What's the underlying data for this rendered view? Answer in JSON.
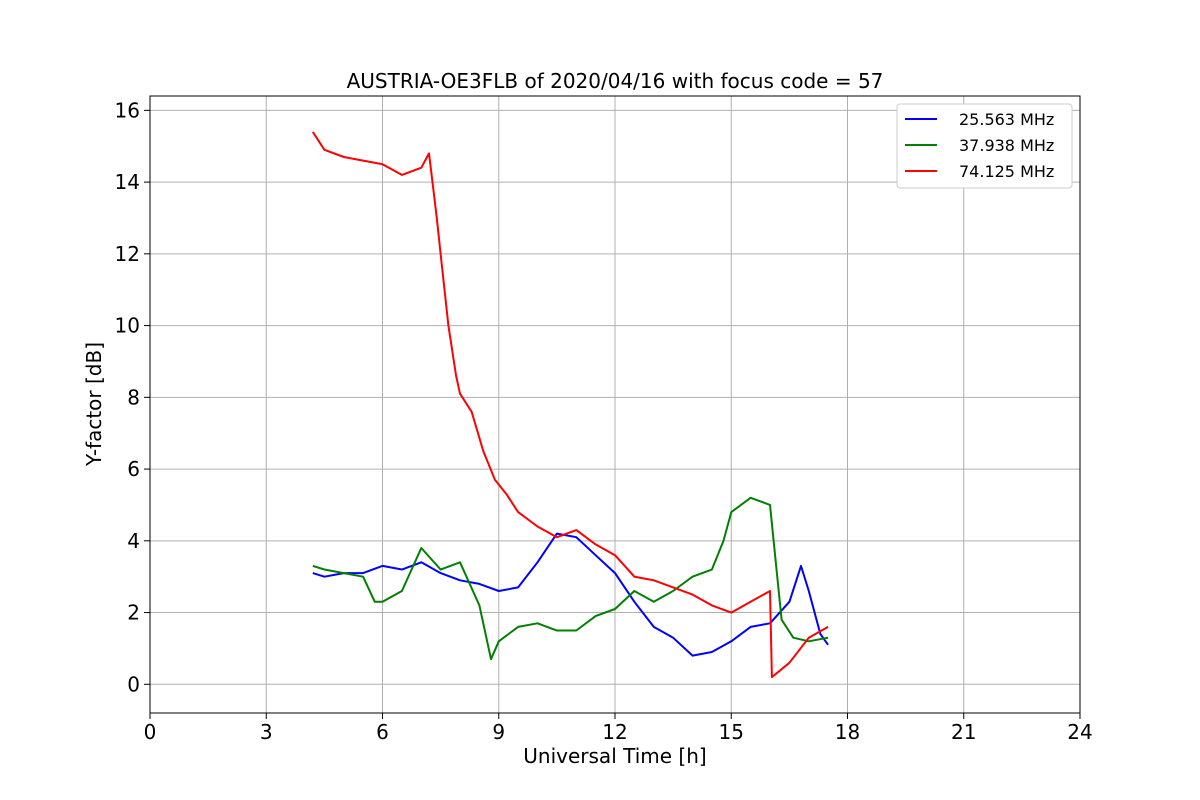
{
  "chart_data": {
    "type": "line",
    "title": "AUSTRIA-OE3FLB of 2020/04/16 with focus code = 57",
    "xlabel": "Universal Time [h]",
    "ylabel": "Y-factor [dB]",
    "xlim": [
      0,
      24
    ],
    "ylim": [
      -0.8,
      16.4
    ],
    "xticks": [
      0,
      3,
      6,
      9,
      12,
      15,
      18,
      21,
      24
    ],
    "xtick_labels": [
      "0",
      "3",
      "6",
      "9",
      "12",
      "15",
      "18",
      "21",
      "24"
    ],
    "yticks": [
      0,
      2,
      4,
      6,
      8,
      10,
      12,
      14,
      16
    ],
    "ytick_labels": [
      "0",
      "2",
      "4",
      "6",
      "8",
      "10",
      "12",
      "14",
      "16"
    ],
    "grid": true,
    "legend_position": "top-right",
    "series": [
      {
        "name": "25.563 MHz",
        "color": "#0000ff",
        "x": [
          4.2,
          4.5,
          5.0,
          5.5,
          6.0,
          6.5,
          7.0,
          7.5,
          8.0,
          8.5,
          9.0,
          9.5,
          10.0,
          10.5,
          11.0,
          11.5,
          12.0,
          12.5,
          13.0,
          13.5,
          14.0,
          14.5,
          15.0,
          15.5,
          16.0,
          16.5,
          16.8,
          17.0,
          17.3,
          17.5
        ],
        "y": [
          3.1,
          3.0,
          3.1,
          3.1,
          3.3,
          3.2,
          3.4,
          3.1,
          2.9,
          2.8,
          2.6,
          2.7,
          3.4,
          4.2,
          4.1,
          3.6,
          3.1,
          2.3,
          1.6,
          1.3,
          0.8,
          0.9,
          1.2,
          1.6,
          1.7,
          2.3,
          3.3,
          2.6,
          1.4,
          1.1
        ]
      },
      {
        "name": "37.938 MHz",
        "color": "#008000",
        "x": [
          4.2,
          4.5,
          5.0,
          5.5,
          5.8,
          6.0,
          6.5,
          7.0,
          7.5,
          8.0,
          8.5,
          8.8,
          9.0,
          9.5,
          10.0,
          10.5,
          11.0,
          11.5,
          12.0,
          12.5,
          13.0,
          13.5,
          14.0,
          14.5,
          14.8,
          15.0,
          15.5,
          16.0,
          16.3,
          16.6,
          17.0,
          17.5
        ],
        "y": [
          3.3,
          3.2,
          3.1,
          3.0,
          2.3,
          2.3,
          2.6,
          3.8,
          3.2,
          3.4,
          2.2,
          0.7,
          1.2,
          1.6,
          1.7,
          1.5,
          1.5,
          1.9,
          2.1,
          2.6,
          2.3,
          2.6,
          3.0,
          3.2,
          4.0,
          4.8,
          5.2,
          5.0,
          1.8,
          1.3,
          1.2,
          1.3
        ]
      },
      {
        "name": "74.125 MHz",
        "color": "#ff0000",
        "x": [
          4.2,
          4.5,
          5.0,
          5.5,
          6.0,
          6.5,
          7.0,
          7.2,
          7.4,
          7.5,
          7.7,
          7.9,
          8.0,
          8.3,
          8.6,
          8.9,
          9.2,
          9.5,
          10.0,
          10.5,
          11.0,
          11.5,
          12.0,
          12.5,
          13.0,
          13.5,
          14.0,
          14.5,
          15.0,
          15.5,
          16.0,
          16.05,
          16.5,
          17.0,
          17.5
        ],
        "y": [
          15.4,
          14.9,
          14.7,
          14.6,
          14.5,
          14.2,
          14.4,
          14.8,
          13.0,
          12.0,
          10.0,
          8.6,
          8.1,
          7.6,
          6.5,
          5.7,
          5.3,
          4.8,
          4.4,
          4.1,
          4.3,
          3.9,
          3.6,
          3.0,
          2.9,
          2.7,
          2.5,
          2.2,
          2.0,
          2.3,
          2.6,
          0.2,
          0.6,
          1.3,
          1.6
        ]
      }
    ]
  }
}
